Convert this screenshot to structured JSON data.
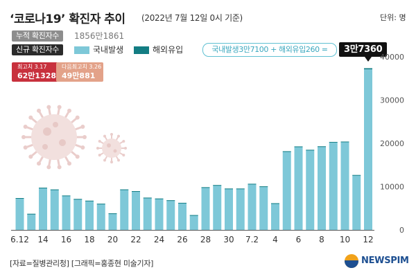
{
  "header": {
    "title": "‘코로나19’ 확진자 추이",
    "subtitle": "(2022년 7월 12일 0시 기준)",
    "unit": "단위: 명"
  },
  "cumulative": {
    "label": "누적 확진자수",
    "value": "1856만1861"
  },
  "legend": {
    "new_label": "신규 확진자수",
    "domestic": "국내발생",
    "overseas": "해외유입"
  },
  "annotation": {
    "breakdown": "국내발생3만7100 + 해외유입260 =",
    "total": "3만7360"
  },
  "records": {
    "highest": {
      "label": "최고치 3.17",
      "value": "62만1328"
    },
    "second": {
      "label": "다음최고치 3.26",
      "value": "49만881"
    }
  },
  "footer": {
    "source": "[자료=질병관리청] [그래픽=홍종현 미술기자]"
  },
  "logo": {
    "text": "NEWSPIM"
  },
  "colors": {
    "domestic": "#7ec8d8",
    "overseas": "#137d83",
    "record_high": "#c8313d",
    "record_second": "#e3a289"
  },
  "chart_data": {
    "type": "bar",
    "stacked": true,
    "title": "‘코로나19’ 확진자 추이",
    "xlabel": "",
    "ylabel": "단위: 명",
    "ylim": [
      0,
      40000
    ],
    "yticks": [
      0,
      10000,
      20000,
      30000,
      40000
    ],
    "ytick_labels": [
      "0",
      "10000",
      "20000",
      "30000",
      "40000"
    ],
    "categories": [
      "6.12",
      "6.13",
      "6.14",
      "6.15",
      "6.16",
      "6.17",
      "6.18",
      "6.19",
      "6.20",
      "6.21",
      "6.22",
      "6.23",
      "6.24",
      "6.25",
      "6.26",
      "6.27",
      "6.28",
      "6.29",
      "6.30",
      "7.1",
      "7.2",
      "7.3",
      "7.4",
      "7.5",
      "7.6",
      "7.7",
      "7.8",
      "7.9",
      "7.10",
      "7.11",
      "7.12"
    ],
    "xtick_labels": [
      "6.12",
      "14",
      "16",
      "18",
      "20",
      "22",
      "24",
      "26",
      "28",
      "30",
      "7.2",
      "4",
      "6",
      "8",
      "10",
      "12"
    ],
    "xtick_indices": [
      0,
      2,
      4,
      6,
      8,
      10,
      12,
      14,
      16,
      18,
      20,
      22,
      24,
      26,
      28,
      30
    ],
    "series": [
      {
        "name": "국내발생",
        "values": [
          7300,
          3700,
          9700,
          9300,
          7900,
          7100,
          6700,
          6000,
          3800,
          9300,
          8900,
          7400,
          7200,
          6800,
          6200,
          3400,
          9800,
          10300,
          9500,
          9500,
          10600,
          10000,
          6100,
          18100,
          19200,
          18400,
          19200,
          20200,
          20300,
          12600,
          37100
        ]
      },
      {
        "name": "해외유입",
        "values": [
          60,
          30,
          60,
          50,
          50,
          60,
          60,
          60,
          30,
          60,
          60,
          60,
          60,
          60,
          60,
          30,
          70,
          70,
          60,
          60,
          60,
          70,
          70,
          80,
          90,
          110,
          120,
          130,
          110,
          90,
          260
        ]
      }
    ],
    "gridlines": false,
    "legend_position": "top-left"
  }
}
